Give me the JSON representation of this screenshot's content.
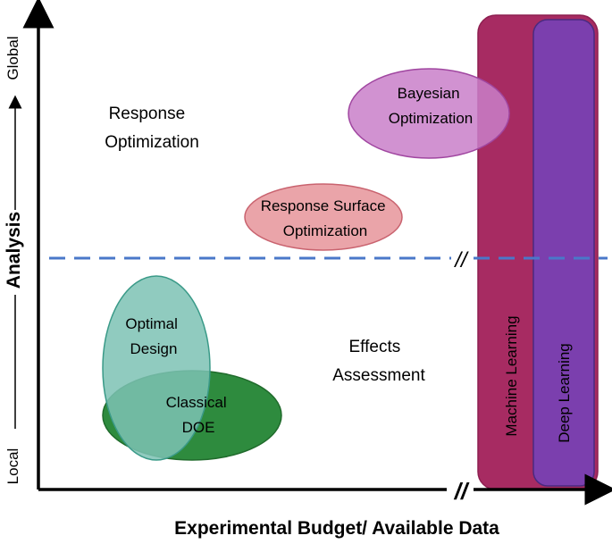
{
  "diagram": {
    "x_axis_label": "Experimental Budget/ Available Data",
    "y_axis_label": "Analysis",
    "y_axis_top": "Global",
    "y_axis_bottom": "Local",
    "region_upper": {
      "line1": "Response",
      "line2": "Optimization"
    },
    "region_lower": {
      "line1": "Effects",
      "line2": "Assessment"
    },
    "bubbles": {
      "bayesian": {
        "line1": "Bayesian",
        "line2": "Optimization"
      },
      "response_surface": {
        "line1": "Response Surface",
        "line2": "Optimization"
      },
      "optimal_design": {
        "line1": "Optimal",
        "line2": "Design"
      },
      "classical_doe": {
        "line1": "Classical",
        "line2": "DOE"
      }
    },
    "bars": {
      "machine_learning": "Machine Learning",
      "deep_learning": "Deep Learning"
    },
    "axis_break_symbol": "//"
  },
  "colors": {
    "bayesian_fill": "#c97fc9",
    "response_surface_fill": "#e89aa0",
    "optimal_design_fill": "#7cc2b4",
    "classical_doe_fill": "#2e8b3e",
    "machine_learning_fill": "#a72b62",
    "deep_learning_fill": "#7b3fae",
    "divider": "#4a78c9"
  }
}
